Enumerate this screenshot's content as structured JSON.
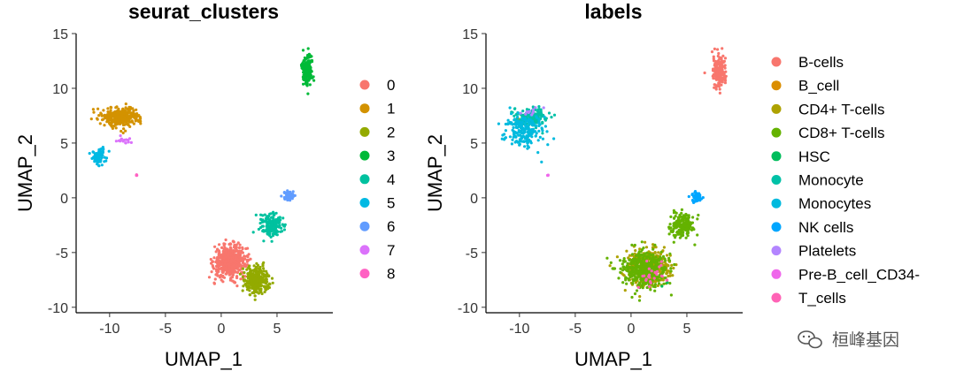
{
  "chart_data": [
    {
      "type": "scatter",
      "title": "seurat_clusters",
      "xlabel": "UMAP_1",
      "ylabel": "UMAP_2",
      "xlim": [
        -13,
        10
      ],
      "ylim": [
        -10.5,
        15
      ],
      "xticks": [
        -10,
        -5,
        0,
        5
      ],
      "yticks": [
        15,
        10,
        5,
        0,
        -5,
        -10
      ],
      "grid": false,
      "legend_position": "right",
      "legend_title": "",
      "series": [
        {
          "name": "0",
          "color": "#F8766D",
          "clusters": [
            {
              "cx": 0.8,
              "cy": -5.8,
              "sx": 1.3,
              "sy": 1.3,
              "n": 520
            }
          ]
        },
        {
          "name": "1",
          "color": "#D39200",
          "clusters": [
            {
              "cx": -9.0,
              "cy": 7.4,
              "sx": 1.5,
              "sy": 0.8,
              "n": 320
            }
          ]
        },
        {
          "name": "2",
          "color": "#93AA00",
          "clusters": [
            {
              "cx": 3.2,
              "cy": -7.5,
              "sx": 1.0,
              "sy": 1.1,
              "n": 300
            }
          ]
        },
        {
          "name": "3",
          "color": "#00BA38",
          "clusters": [
            {
              "cx": 7.7,
              "cy": 11.8,
              "sx": 0.45,
              "sy": 1.3,
              "n": 180
            }
          ]
        },
        {
          "name": "4",
          "color": "#00C19F",
          "clusters": [
            {
              "cx": 4.6,
              "cy": -2.5,
              "sx": 1.0,
              "sy": 1.0,
              "n": 180
            }
          ]
        },
        {
          "name": "5",
          "color": "#00B9E3",
          "clusters": [
            {
              "cx": -11.0,
              "cy": 3.7,
              "sx": 0.55,
              "sy": 0.7,
              "n": 70
            }
          ]
        },
        {
          "name": "6",
          "color": "#619CFF",
          "clusters": [
            {
              "cx": 6.0,
              "cy": 0.2,
              "sx": 0.45,
              "sy": 0.35,
              "n": 60
            }
          ]
        },
        {
          "name": "7",
          "color": "#DB72FB",
          "clusters": [
            {
              "cx": -8.7,
              "cy": 5.3,
              "sx": 0.6,
              "sy": 0.3,
              "n": 15
            }
          ]
        },
        {
          "name": "8",
          "color": "#FF61C3",
          "clusters": [
            {
              "cx": -7.6,
              "cy": 2.0,
              "sx": 0.12,
              "sy": 0.12,
              "n": 4
            }
          ]
        }
      ]
    },
    {
      "type": "scatter",
      "title": "labels",
      "xlabel": "UMAP_1",
      "ylabel": "UMAP_2",
      "xlim": [
        -13,
        10
      ],
      "ylim": [
        -10.5,
        15
      ],
      "xticks": [
        -10,
        -5,
        0,
        5
      ],
      "yticks": [
        15,
        10,
        5,
        0,
        -5,
        -10
      ],
      "grid": false,
      "legend_position": "right",
      "legend_title": "",
      "series": [
        {
          "name": "B-cells",
          "color": "#F8766D",
          "clusters": [
            {
              "cx": 7.9,
              "cy": 11.6,
              "sx": 0.5,
              "sy": 1.4,
              "n": 180
            }
          ]
        },
        {
          "name": "B_cell",
          "color": "#DB8E00",
          "clusters": [
            {
              "cx": -10.0,
              "cy": 7.0,
              "sx": 0.5,
              "sy": 0.3,
              "n": 3
            }
          ]
        },
        {
          "name": "CD4+ T-cells",
          "color": "#AEA200",
          "clusters": [
            {
              "cx": 1.5,
              "cy": -6.3,
              "sx": 1.8,
              "sy": 1.5,
              "n": 380
            }
          ]
        },
        {
          "name": "CD8+ T-cells",
          "color": "#64B200",
          "clusters": [
            {
              "cx": 1.2,
              "cy": -6.5,
              "sx": 1.8,
              "sy": 1.5,
              "n": 420
            },
            {
              "cx": 4.6,
              "cy": -2.5,
              "sx": 1.0,
              "sy": 1.0,
              "n": 170
            }
          ]
        },
        {
          "name": "HSC",
          "color": "#00BD5C",
          "clusters": [
            {
              "cx": 3.0,
              "cy": -8.0,
              "sx": 0.4,
              "sy": 0.4,
              "n": 2
            }
          ]
        },
        {
          "name": "Monocyte",
          "color": "#00C1A7",
          "clusters": [
            {
              "cx": -9.0,
              "cy": 7.3,
              "sx": 1.4,
              "sy": 0.8,
              "n": 170
            }
          ]
        },
        {
          "name": "Monocytes",
          "color": "#00BADE",
          "clusters": [
            {
              "cx": -9.6,
              "cy": 6.2,
              "sx": 1.4,
              "sy": 1.4,
              "n": 190
            }
          ]
        },
        {
          "name": "NK cells",
          "color": "#00A6FF",
          "clusters": [
            {
              "cx": 5.9,
              "cy": 0.1,
              "sx": 0.45,
              "sy": 0.4,
              "n": 55
            }
          ]
        },
        {
          "name": "Platelets",
          "color": "#B385FF",
          "clusters": [
            {
              "cx": -8.9,
              "cy": 7.9,
              "sx": 1.0,
              "sy": 0.4,
              "n": 12
            }
          ]
        },
        {
          "name": "Pre-B_cell_CD34-",
          "color": "#EF67EB",
          "clusters": [
            {
              "cx": -7.5,
              "cy": 2.0,
              "sx": 0.15,
              "sy": 0.15,
              "n": 3
            }
          ]
        },
        {
          "name": "T_cells",
          "color": "#FF63B6",
          "clusters": [
            {
              "cx": 2.0,
              "cy": -7.0,
              "sx": 1.5,
              "sy": 1.2,
              "n": 25
            }
          ]
        }
      ]
    }
  ],
  "watermark": {
    "text": "桓峰基因",
    "icon": "wechat-icon"
  }
}
